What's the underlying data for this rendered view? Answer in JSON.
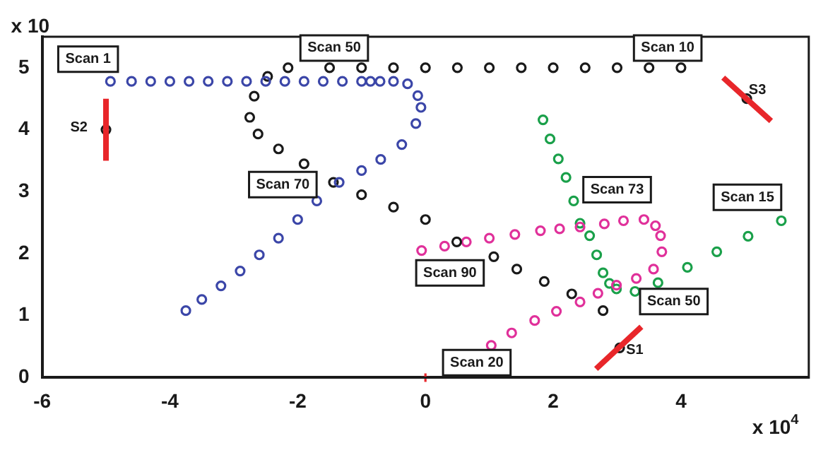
{
  "chart_data": {
    "type": "scatter",
    "xlim": [
      -6,
      6
    ],
    "ylim": [
      0,
      5.5
    ],
    "xticks": [
      -6,
      -4,
      -2,
      0,
      2,
      4
    ],
    "yticks": [
      0,
      1,
      2,
      3,
      4,
      5
    ],
    "grid": false,
    "legend": false,
    "marker": "circle",
    "series": [
      {
        "color": "#3b46a8",
        "x": [
          -4.93,
          -4.6,
          -4.3,
          -4.0,
          -3.7,
          -3.4,
          -3.1,
          -2.8,
          -2.5,
          -2.2,
          -1.9,
          -1.6,
          -1.3,
          -1.0,
          -0.86,
          -0.71,
          -0.5,
          -0.28,
          -0.12,
          -0.07,
          -0.15,
          -0.37,
          -0.7,
          -1.0,
          -1.35,
          -1.7,
          -2.0,
          -2.3,
          -2.6,
          -2.9,
          -3.2,
          -3.5,
          -3.75
        ],
        "values": [
          4.78,
          4.78,
          4.78,
          4.78,
          4.78,
          4.78,
          4.78,
          4.78,
          4.78,
          4.78,
          4.78,
          4.78,
          4.78,
          4.78,
          4.78,
          4.78,
          4.78,
          4.74,
          4.55,
          4.36,
          4.1,
          3.76,
          3.52,
          3.34,
          3.15,
          2.85,
          2.55,
          2.25,
          1.98,
          1.72,
          1.48,
          1.26,
          1.08
        ]
      },
      {
        "color": "#1a1a1a",
        "x": [
          4.0,
          3.5,
          3.0,
          2.5,
          2.0,
          1.5,
          1.0,
          0.5,
          0.0,
          -0.5,
          -1.0,
          -1.5,
          -2.15,
          -2.47,
          -2.68,
          -2.75,
          -2.62,
          -2.3,
          -1.9,
          -1.44,
          -1.0,
          -0.5,
          0.0,
          0.49,
          1.07,
          1.43,
          1.86,
          2.29,
          2.78
        ],
        "values": [
          5.0,
          5.0,
          5.0,
          5.0,
          5.0,
          5.0,
          5.0,
          5.0,
          5.0,
          5.0,
          5.0,
          5.0,
          5.0,
          4.86,
          4.54,
          4.2,
          3.93,
          3.69,
          3.45,
          3.15,
          2.95,
          2.75,
          2.55,
          2.19,
          1.95,
          1.75,
          1.55,
          1.35,
          1.08
        ]
      },
      {
        "color": "#e0309a",
        "x": [
          -0.06,
          0.3,
          0.64,
          1.0,
          1.4,
          1.8,
          2.1,
          2.42,
          2.8,
          3.1,
          3.42,
          3.6,
          3.68,
          3.7,
          3.57,
          3.3,
          2.99,
          2.7,
          2.42,
          2.05,
          1.71,
          1.35,
          1.03
        ],
        "values": [
          2.05,
          2.12,
          2.19,
          2.25,
          2.31,
          2.37,
          2.4,
          2.43,
          2.48,
          2.53,
          2.55,
          2.45,
          2.29,
          2.03,
          1.75,
          1.6,
          1.49,
          1.36,
          1.22,
          1.07,
          0.92,
          0.72,
          0.52
        ]
      },
      {
        "color": "#1aa04a",
        "x": [
          1.84,
          1.95,
          2.08,
          2.2,
          2.32,
          2.42,
          2.57,
          2.68,
          2.78,
          2.88,
          2.99,
          3.28,
          3.64,
          4.1,
          4.56,
          5.05,
          5.57
        ],
        "values": [
          4.16,
          3.85,
          3.53,
          3.23,
          2.85,
          2.49,
          2.29,
          1.98,
          1.69,
          1.52,
          1.43,
          1.39,
          1.53,
          1.78,
          2.03,
          2.28,
          2.53
        ]
      },
      {
        "type": "line",
        "marker": "none",
        "color": "#e8262a",
        "x": [
          -5.0,
          -5.0
        ],
        "values": [
          3.5,
          4.5
        ]
      },
      {
        "type": "line",
        "marker": "none",
        "color": "#e8262a",
        "x": [
          4.66,
          5.41
        ],
        "values": [
          4.84,
          4.14
        ]
      },
      {
        "type": "line",
        "marker": "none",
        "color": "#e8262a",
        "x": [
          2.67,
          3.38
        ],
        "values": [
          0.14,
          0.82
        ]
      },
      {
        "color": "#1a1a1a",
        "x": [
          -5.0,
          5.03,
          3.04
        ],
        "values": [
          4.0,
          4.5,
          0.48
        ]
      },
      {
        "marker": "cross",
        "color": "#e8262a",
        "x": [
          0
        ],
        "values": [
          0
        ]
      }
    ],
    "annotations": [
      "x 10",
      "x 10$^{4}$",
      "Scan 1",
      "Scan 50",
      "Scan 10",
      "S3",
      "S2",
      "Scan 70",
      "Scan 73",
      "Scan 15",
      "Scan 90",
      "Scan 50",
      "Scan 20",
      "S1"
    ]
  }
}
